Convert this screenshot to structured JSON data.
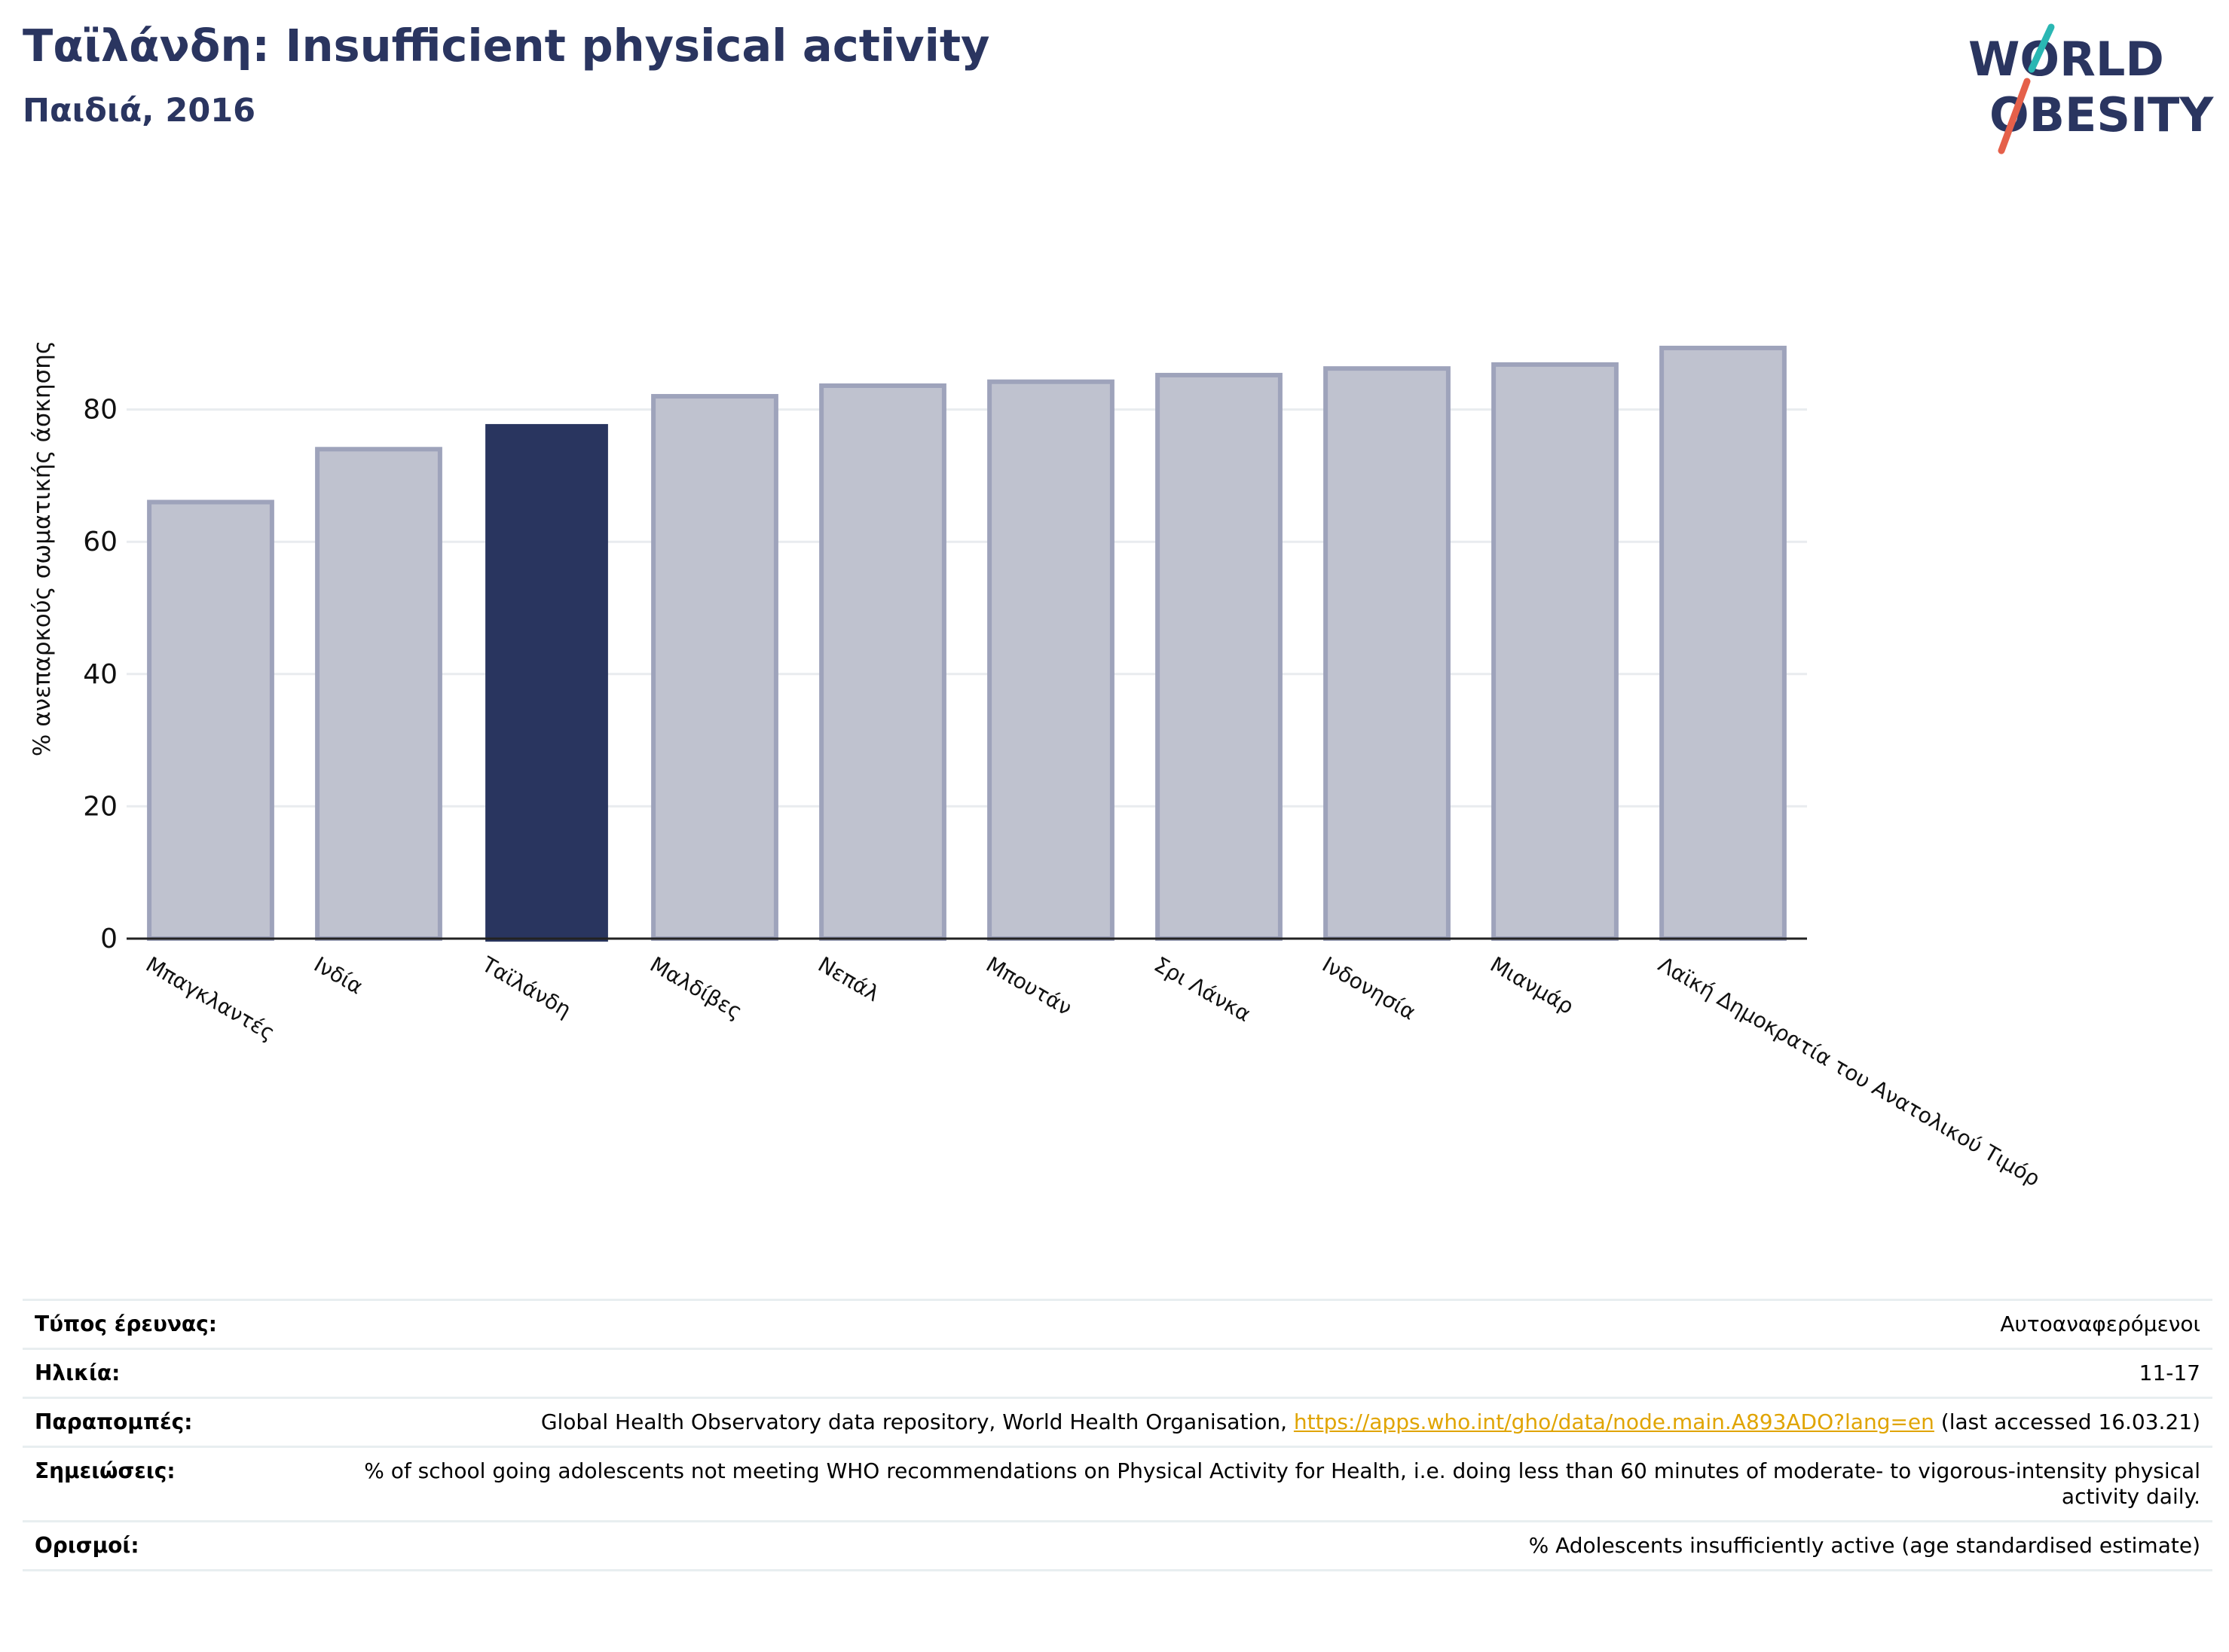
{
  "header": {
    "title": "Ταϊλάνδη: Insufficient physical activity",
    "subtitle": "Παιδιά, 2016"
  },
  "logo": {
    "line1": "WORLD",
    "line2": "OBESITY",
    "slash_colors": [
      "#2ab7b3",
      "#e5604a"
    ],
    "text_color": "#2a3560"
  },
  "colors": {
    "highlight": "#29355f",
    "bar_fill": "#bfc2cf",
    "bar_stroke": "#9ea3bb"
  },
  "chart_data": {
    "type": "bar",
    "title": "",
    "xlabel": "",
    "ylabel": "% ανεπαρκούς σωματικής άσκησης",
    "ylim": [
      0,
      90
    ],
    "yticks": [
      0,
      20,
      40,
      60,
      80
    ],
    "grid": true,
    "categories": [
      "Μπαγκλαντές",
      "Ινδία",
      "Ταϊλάνδη",
      "Μαλδίβες",
      "Νεπάλ",
      "Μπουτάν",
      "Σρι Λάνκα",
      "Ινδονησία",
      "Μιανμάρ",
      "Λαϊκή Δημοκρατία του Ανατολικού Τιμόρ"
    ],
    "values": [
      66.0,
      74.0,
      77.8,
      82.0,
      83.6,
      84.2,
      85.2,
      86.2,
      86.8,
      89.3
    ],
    "highlight_index": 2
  },
  "info": {
    "rows": [
      {
        "label": "Τύπος έρευνας:",
        "value": "Αυτοαναφερόμενοι"
      },
      {
        "label": "Ηλικία:",
        "value": "11-17"
      },
      {
        "label": "Παραπομπές:",
        "value_before": "Global Health Observatory data repository, World Health Organisation, ",
        "link": "https://apps.who.int/gho/data/node.main.A893ADO?lang=en",
        "value_after": " (last accessed 16.03.21)"
      },
      {
        "label": "Σημειώσεις:",
        "value": "% of school going adolescents not meeting WHO recommendations on Physical Activity for Health, i.e. doing less than 60 minutes of moderate- to vigorous-intensity physical activity daily."
      },
      {
        "label": "Ορισμοί:",
        "value": "% Adolescents insufficiently active (age standardised estimate)"
      }
    ]
  }
}
